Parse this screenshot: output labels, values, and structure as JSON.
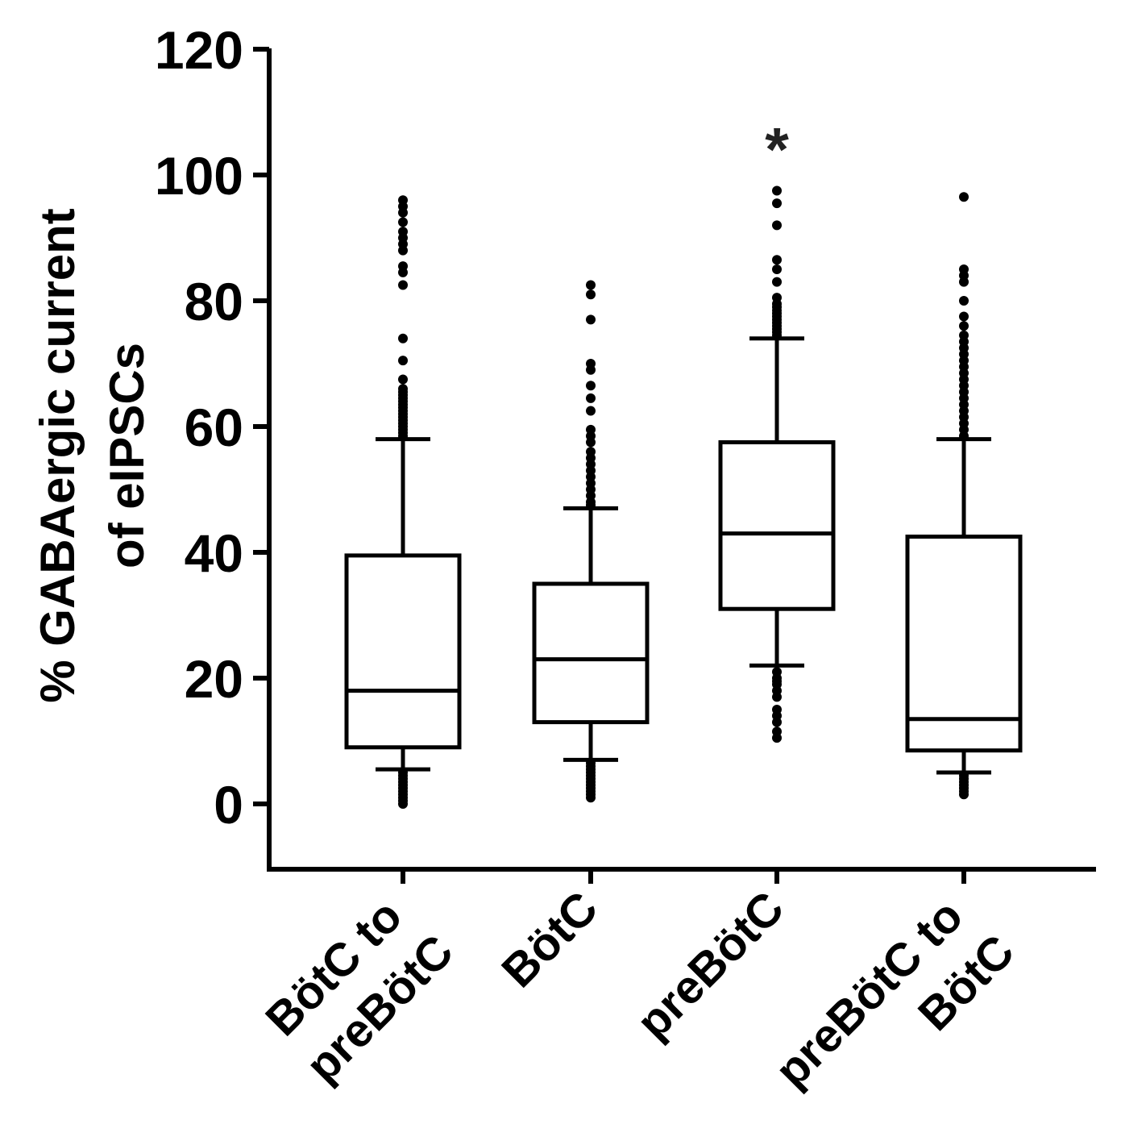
{
  "chart_data": {
    "type": "box",
    "ylabel_lines": [
      "% GABAergic current",
      "of eIPSCs"
    ],
    "ylim": [
      -10,
      120
    ],
    "yticks": [
      0,
      20,
      40,
      60,
      80,
      100,
      120
    ],
    "ytick_labels": [
      "0",
      "20",
      "40",
      "60",
      "80",
      "100",
      "120"
    ],
    "grid": false,
    "legend": "none",
    "categories": [
      {
        "lines": [
          "BötC to",
          "preBötC"
        ]
      },
      {
        "lines": [
          "BötC"
        ]
      },
      {
        "lines": [
          "preBötC"
        ]
      },
      {
        "lines": [
          "preBötC to",
          "BötC"
        ]
      }
    ],
    "boxes": [
      {
        "whisker_low": 5.5,
        "q1": 9,
        "median": 18,
        "q3": 39.5,
        "whisker_high": 58,
        "significance": "",
        "outliers": [
          0,
          0.5,
          1,
          1.5,
          2,
          2.5,
          3,
          3.5,
          4,
          4.5,
          5,
          58.5,
          59,
          59.5,
          60,
          60.5,
          61,
          61.5,
          62,
          62.5,
          63,
          63.5,
          64,
          64.5,
          65,
          65.5,
          66,
          67.5,
          70.5,
          74,
          82.5,
          84.5,
          85.5,
          88,
          89,
          90,
          91,
          92.5,
          94,
          95,
          96
        ]
      },
      {
        "whisker_low": 7,
        "q1": 13,
        "median": 23,
        "q3": 35,
        "whisker_high": 47,
        "significance": "",
        "outliers": [
          1,
          1.5,
          2,
          2.5,
          3,
          3.5,
          4,
          4.5,
          5,
          5.5,
          6,
          6.5,
          47.5,
          48,
          49,
          50,
          51,
          52,
          53,
          54,
          55,
          56,
          57.5,
          58.5,
          59.5,
          62.5,
          64.5,
          66.5,
          69,
          70,
          77,
          81,
          82.5
        ]
      },
      {
        "whisker_low": 22,
        "q1": 31,
        "median": 43,
        "q3": 57.5,
        "whisker_high": 74,
        "significance": "*",
        "outliers": [
          10.5,
          11.5,
          13,
          14,
          15,
          17,
          18,
          19,
          19.5,
          20,
          21,
          74.5,
          75,
          75.5,
          76,
          76.5,
          77,
          77.5,
          78,
          78.5,
          79,
          79.5,
          80.5,
          83,
          85,
          86.5,
          92,
          95.5,
          97.5
        ]
      },
      {
        "whisker_low": 5,
        "q1": 8.5,
        "median": 13.5,
        "q3": 42.5,
        "whisker_high": 58,
        "significance": "",
        "outliers": [
          1.5,
          2,
          2.5,
          3,
          3.5,
          4,
          4.5,
          58.5,
          59.5,
          60.5,
          61.5,
          62.5,
          63.5,
          64.5,
          65.5,
          66.5,
          67.5,
          68.5,
          69.5,
          70.5,
          71.5,
          72.5,
          73.5,
          74.5,
          76,
          77.5,
          80,
          83,
          84,
          85,
          96.5
        ]
      }
    ]
  }
}
